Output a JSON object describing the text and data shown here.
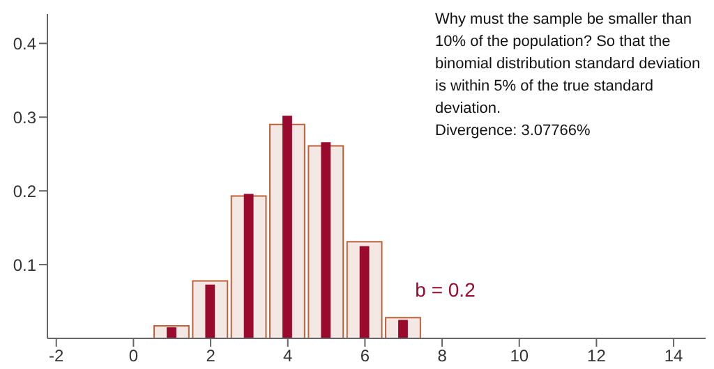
{
  "chart_data": {
    "type": "bar",
    "x": [
      1,
      2,
      3,
      4,
      5,
      6,
      7
    ],
    "series": [
      {
        "color": "#f3e8e4",
        "values": [
          0.017,
          0.078,
          0.193,
          0.29,
          0.261,
          0.131,
          0.028
        ]
      },
      {
        "color": "#990a2c",
        "values": [
          0.015,
          0.073,
          0.196,
          0.302,
          0.266,
          0.125,
          0.025
        ]
      }
    ],
    "xlim": [
      -2.23,
      14.83
    ],
    "xticks": [
      -2,
      0,
      2,
      4,
      6,
      8,
      10,
      12,
      14
    ],
    "ylim": [
      0,
      0.44
    ],
    "yticks": [
      0.1,
      0.2,
      0.3,
      0.4
    ],
    "grid": false,
    "annotations": [
      "b = 0.2",
      "Why must the sample be smaller than 10% of the population?  So that the binomial distribution standard deviation is within 5% of the true standard deviation.",
      "Divergence: 3.07766%"
    ]
  }
}
